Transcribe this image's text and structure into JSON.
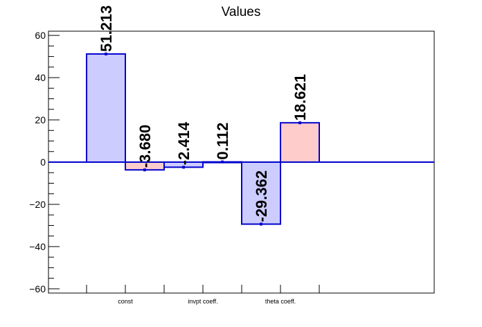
{
  "chart_data": {
    "type": "bar",
    "title": "Values",
    "xlabel": "",
    "ylabel": "",
    "ylim": [
      -62,
      62
    ],
    "yticks": [
      -60,
      -40,
      -20,
      0,
      20,
      40,
      60
    ],
    "ytick_labels": [
      "−60",
      "−40",
      "−20",
      "0",
      "20",
      "40",
      "60"
    ],
    "categories": [
      "const",
      "invpt coeff.",
      "theta coeff."
    ],
    "bars": [
      {
        "category": "const",
        "value": 51.213,
        "label": "51.213",
        "fill": "#ccccff",
        "stroke": "#0000cc"
      },
      {
        "category": "const",
        "value": -3.68,
        "label": "-3.680",
        "fill": "#ffcccc",
        "stroke": "#0000cc"
      },
      {
        "category": "invpt coeff.",
        "value": -2.414,
        "label": "-2.414",
        "fill": "#ccccff",
        "stroke": "#0000cc"
      },
      {
        "category": "invpt coeff.",
        "value": 0.112,
        "label": "0.112",
        "fill": "#ffcccc",
        "stroke": "#0000cc"
      },
      {
        "category": "theta coeff.",
        "value": -29.362,
        "label": "-29.362",
        "fill": "#ccccff",
        "stroke": "#0000cc"
      },
      {
        "category": "theta coeff.",
        "value": 18.621,
        "label": "18.621",
        "fill": "#ffcccc",
        "stroke": "#0000cc"
      }
    ],
    "zero_line_color": "#0000cc",
    "grid": false,
    "legend": "none"
  }
}
